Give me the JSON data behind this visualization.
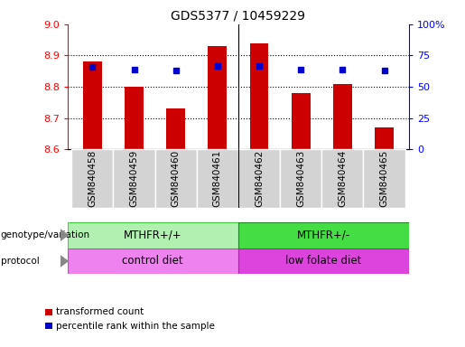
{
  "title": "GDS5377 / 10459229",
  "samples": [
    "GSM840458",
    "GSM840459",
    "GSM840460",
    "GSM840461",
    "GSM840462",
    "GSM840463",
    "GSM840464",
    "GSM840465"
  ],
  "bar_values": [
    8.88,
    8.8,
    8.73,
    8.93,
    8.94,
    8.78,
    8.81,
    8.67
  ],
  "bar_base": 8.6,
  "percentile_values": [
    8.865,
    8.855,
    8.853,
    8.867,
    8.867,
    8.854,
    8.856,
    8.852
  ],
  "ylim_left": [
    8.6,
    9.0
  ],
  "ylim_right": [
    0,
    100
  ],
  "yticks_left": [
    8.6,
    8.7,
    8.8,
    8.9,
    9.0
  ],
  "yticks_right": [
    0,
    25,
    50,
    75,
    100
  ],
  "ytick_labels_right": [
    "0",
    "25",
    "50",
    "75",
    "100%"
  ],
  "bar_color": "#cc0000",
  "dot_color": "#0000cc",
  "genotype_labels": [
    "MTHFR+/+",
    "MTHFR+/-"
  ],
  "genotype_color_left": "#b2f0b2",
  "genotype_color_right": "#44dd44",
  "protocol_labels": [
    "control diet",
    "low folate diet"
  ],
  "protocol_color_left": "#ee82ee",
  "protocol_color_right": "#dd44dd",
  "legend_bar_label": "transformed count",
  "legend_dot_label": "percentile rank within the sample",
  "xtick_bg_color": "#d3d3d3",
  "separator_color": "#228b22",
  "arrow_color": "#888888"
}
